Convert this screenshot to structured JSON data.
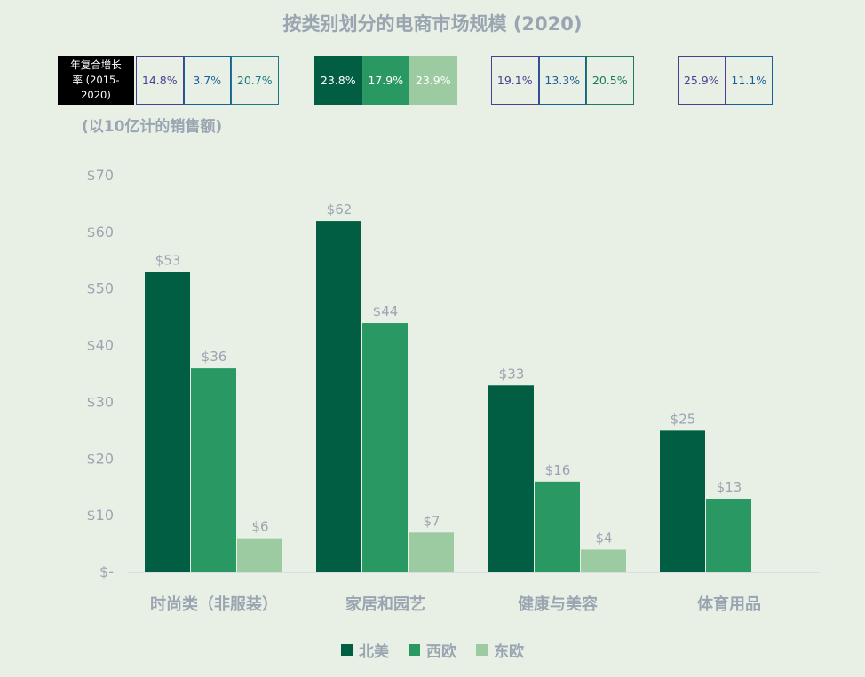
{
  "chart_data": {
    "type": "bar",
    "title": "按类别划分的电商市场规模 (2020)",
    "unit_note": "(以10亿计的销售额)",
    "categories": [
      "时尚类（非服装）",
      "家居和园艺",
      "健康与美容",
      "体育用品"
    ],
    "series": [
      {
        "name": "北美",
        "color": "#025e43",
        "values": [
          53,
          62,
          33,
          25
        ],
        "labels": [
          "$53",
          "$62",
          "$33",
          "$25"
        ]
      },
      {
        "name": "西欧",
        "color": "#2a9862",
        "values": [
          36,
          44,
          16,
          13
        ],
        "labels": [
          "$36",
          "$44",
          "$16",
          "$13"
        ]
      },
      {
        "name": "东欧",
        "color": "#9dcba1",
        "values": [
          6,
          7,
          4,
          null
        ],
        "labels": [
          "$6",
          "$7",
          "$4",
          null
        ]
      }
    ],
    "ylim": [
      0,
      70
    ],
    "yticks": [
      "$-",
      "$10",
      "$20",
      "$30",
      "$40",
      "$50",
      "$60",
      "$70"
    ],
    "grid": false,
    "legend_position": "bottom-center"
  },
  "cagr": {
    "label_lines": [
      "年复合增长",
      "率 (2015-",
      "2020)"
    ],
    "groups": [
      [
        {
          "value": "14.8%",
          "style": "outline",
          "color": "#4b3f91"
        },
        {
          "value": "3.7%",
          "style": "outline",
          "color": "#1a5f9a"
        },
        {
          "value": "20.7%",
          "style": "outline",
          "color": "#1e7a82"
        }
      ],
      [
        {
          "value": "23.8%",
          "style": "filled",
          "color": "#025e43"
        },
        {
          "value": "17.9%",
          "style": "filled",
          "color": "#2a9862"
        },
        {
          "value": "23.9%",
          "style": "filled",
          "color": "#9dcba1"
        }
      ],
      [
        {
          "value": "19.1%",
          "style": "outline",
          "color": "#4b3f91"
        },
        {
          "value": "13.3%",
          "style": "outline",
          "color": "#1a5f9a"
        },
        {
          "value": "20.5%",
          "style": "outline",
          "color": "#1e7a5c"
        }
      ],
      [
        {
          "value": "25.9%",
          "style": "outline",
          "color": "#4b3f91"
        },
        {
          "value": "11.1%",
          "style": "outline",
          "color": "#1a5f9a"
        }
      ]
    ]
  },
  "colors": {
    "background": "#e8efe4",
    "text": "#9aa5b2",
    "axis": "#d9dee3"
  }
}
